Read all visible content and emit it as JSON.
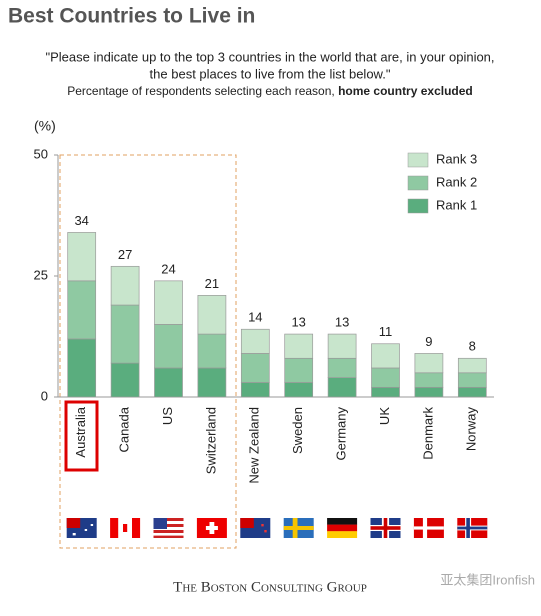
{
  "chart_data": {
    "type": "stacked_bar",
    "title": "Best Countries to Live in",
    "quote_line1": "\"Please indicate up to the top 3 countries in the world that are, in your opinion,",
    "quote_line2": "the best places to live from the list below.\"",
    "subtitle": "Percentage of respondents selecting each reason, ",
    "subtitle_bold": "home country excluded",
    "y_label": "(%)",
    "categories": [
      "Australia",
      "Canada",
      "US",
      "Switzerland",
      "New Zealand",
      "Sweden",
      "Germany",
      "UK",
      "Denmark",
      "Norway"
    ],
    "series": [
      {
        "name": "Rank 1",
        "color": "#5aad7e",
        "values": [
          12,
          7,
          6,
          6,
          3,
          3,
          4,
          2,
          2,
          2
        ]
      },
      {
        "name": "Rank 2",
        "color": "#8fc9a2",
        "values": [
          12,
          12,
          9,
          7,
          6,
          5,
          4,
          4,
          3,
          3
        ]
      },
      {
        "name": "Rank 3",
        "color": "#c8e5cc",
        "values": [
          10,
          8,
          9,
          8,
          5,
          5,
          5,
          5,
          4,
          3
        ]
      }
    ],
    "total_labels": [
      34,
      27,
      24,
      21,
      14,
      13,
      13,
      11,
      9,
      8
    ],
    "ylim": [
      0,
      50
    ],
    "yticks": [
      0,
      25,
      50
    ],
    "footer": "The Boston Consulting Group",
    "watermark": "亚太集团Ironfish"
  }
}
